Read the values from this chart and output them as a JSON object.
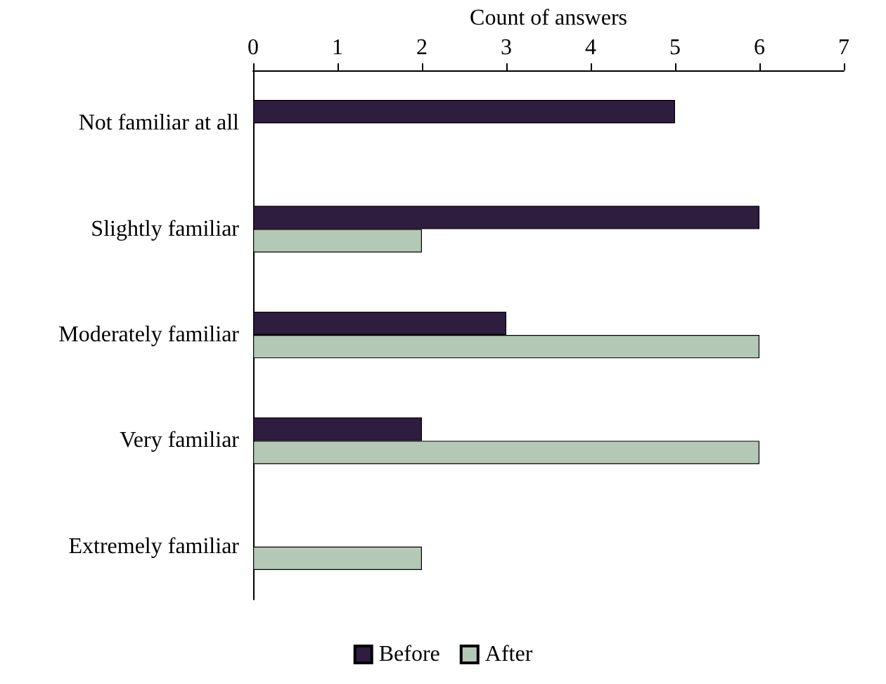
{
  "chart_data": {
    "type": "bar",
    "orientation": "horizontal",
    "xlabel": "Count of answers",
    "categories": [
      "Not familiar at all",
      "Slightly familiar",
      "Moderately familiar",
      "Very familiar",
      "Extremely familiar"
    ],
    "series": [
      {
        "name": "Before",
        "color": "#2e1d3f",
        "values": [
          5,
          6,
          3,
          2,
          null
        ]
      },
      {
        "name": "After",
        "color": "#b4c8b6",
        "values": [
          null,
          2,
          6,
          6,
          2
        ]
      }
    ],
    "xlim": [
      0,
      7
    ],
    "xticks": [
      0,
      1,
      2,
      3,
      4,
      5,
      6,
      7
    ],
    "grid": false,
    "legend": "bottom"
  }
}
